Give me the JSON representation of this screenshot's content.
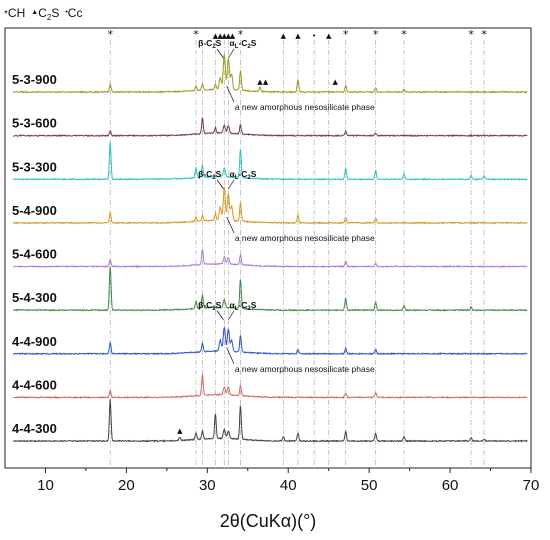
{
  "chart_data": {
    "type": "line",
    "title": "",
    "xlabel": "2θ(CuKα)(°)",
    "ylabel": "",
    "xlim": [
      5,
      70
    ],
    "x_ticks": [
      10,
      20,
      30,
      40,
      50,
      60,
      70
    ],
    "y_axis": "hidden",
    "grid": false,
    "legend": {
      "placement": "top-left",
      "entries": [
        {
          "marker": "*",
          "label": "CH"
        },
        {
          "marker": "▲",
          "label": "C",
          "sub": "2",
          "tail": "S"
        },
        {
          "marker": "•",
          "label": "Cc"
        }
      ]
    },
    "reference_lines_x": [
      18.0,
      28.6,
      29.4,
      31.0,
      32.1,
      32.6,
      34.1,
      39.4,
      41.2,
      43.2,
      45.0,
      47.1,
      50.8,
      54.3,
      62.6,
      64.2
    ],
    "reference_markers": [
      {
        "x": 18.0,
        "marker": "*"
      },
      {
        "x": 28.6,
        "marker": "*"
      },
      {
        "x": 31.0,
        "marker": "▲"
      },
      {
        "x": 31.6,
        "marker": "▲"
      },
      {
        "x": 32.1,
        "marker": "▲"
      },
      {
        "x": 32.6,
        "marker": "▲"
      },
      {
        "x": 33.1,
        "marker": "▲"
      },
      {
        "x": 34.1,
        "marker": "*"
      },
      {
        "x": 39.4,
        "marker": "▲"
      },
      {
        "x": 41.2,
        "marker": "▲"
      },
      {
        "x": 43.2,
        "marker": "•"
      },
      {
        "x": 45.0,
        "marker": "▲"
      },
      {
        "x": 47.1,
        "marker": "*"
      },
      {
        "x": 50.8,
        "marker": "*"
      },
      {
        "x": 54.3,
        "marker": "*"
      },
      {
        "x": 62.6,
        "marker": "*"
      },
      {
        "x": 64.2,
        "marker": "*"
      }
    ],
    "series": [
      {
        "name": "5-3-900",
        "color": "#9d9a1f",
        "peaks": [
          [
            18.0,
            0.35
          ],
          [
            28.6,
            0.2
          ],
          [
            29.4,
            0.3
          ],
          [
            31.0,
            0.25
          ],
          [
            31.6,
            0.55
          ],
          [
            32.1,
            1.6
          ],
          [
            32.6,
            1.4
          ],
          [
            33.0,
            0.7
          ],
          [
            34.1,
            0.9
          ],
          [
            36.5,
            0.2
          ],
          [
            41.2,
            0.55
          ],
          [
            47.1,
            0.3
          ],
          [
            50.8,
            0.2
          ],
          [
            54.3,
            0.15
          ]
        ]
      },
      {
        "name": "5-3-600",
        "color": "#7a3a44",
        "peaks": [
          [
            18.0,
            0.2
          ],
          [
            29.4,
            0.75
          ],
          [
            31.0,
            0.25
          ],
          [
            32.1,
            0.35
          ],
          [
            32.6,
            0.35
          ],
          [
            34.1,
            0.4
          ],
          [
            47.1,
            0.2
          ],
          [
            50.8,
            0.12
          ]
        ]
      },
      {
        "name": "5-3-300",
        "color": "#2fc4c0",
        "peaks": [
          [
            18.0,
            1.7
          ],
          [
            28.6,
            0.45
          ],
          [
            29.4,
            0.55
          ],
          [
            32.1,
            0.4
          ],
          [
            34.1,
            1.3
          ],
          [
            47.1,
            0.5
          ],
          [
            50.8,
            0.4
          ],
          [
            54.3,
            0.25
          ],
          [
            62.6,
            0.2
          ],
          [
            64.2,
            0.15
          ]
        ]
      },
      {
        "name": "5-4-900",
        "color": "#d59a1e",
        "peaks": [
          [
            18.0,
            0.45
          ],
          [
            28.6,
            0.2
          ],
          [
            29.4,
            0.25
          ],
          [
            31.0,
            0.3
          ],
          [
            31.6,
            0.6
          ],
          [
            32.1,
            1.5
          ],
          [
            32.6,
            1.2
          ],
          [
            33.0,
            0.65
          ],
          [
            34.1,
            0.85
          ],
          [
            41.2,
            0.35
          ],
          [
            47.1,
            0.25
          ],
          [
            50.8,
            0.2
          ]
        ]
      },
      {
        "name": "5-4-600",
        "color": "#b07ad0",
        "peaks": [
          [
            18.0,
            0.3
          ],
          [
            29.4,
            0.7
          ],
          [
            32.1,
            0.3
          ],
          [
            32.6,
            0.3
          ],
          [
            34.1,
            0.45
          ],
          [
            47.1,
            0.25
          ],
          [
            50.8,
            0.15
          ]
        ]
      },
      {
        "name": "5-4-300",
        "color": "#3e8a48",
        "peaks": [
          [
            18.0,
            2.0
          ],
          [
            28.6,
            0.35
          ],
          [
            29.4,
            0.6
          ],
          [
            32.1,
            0.35
          ],
          [
            34.1,
            1.35
          ],
          [
            47.1,
            0.55
          ],
          [
            50.8,
            0.35
          ],
          [
            54.3,
            0.2
          ],
          [
            62.6,
            0.15
          ]
        ]
      },
      {
        "name": "4-4-900",
        "color": "#2f52c4",
        "peaks": [
          [
            18.0,
            0.5
          ],
          [
            29.4,
            0.4
          ],
          [
            31.6,
            0.5
          ],
          [
            32.1,
            1.1
          ],
          [
            32.6,
            1.0
          ],
          [
            33.0,
            0.5
          ],
          [
            34.1,
            0.75
          ],
          [
            41.2,
            0.2
          ],
          [
            47.1,
            0.25
          ],
          [
            50.8,
            0.2
          ]
        ]
      },
      {
        "name": "4-4-600",
        "color": "#d06a5c",
        "peaks": [
          [
            18.0,
            0.3
          ],
          [
            29.4,
            0.95
          ],
          [
            32.1,
            0.35
          ],
          [
            32.6,
            0.35
          ],
          [
            34.1,
            0.45
          ],
          [
            47.1,
            0.2
          ],
          [
            50.8,
            0.2
          ]
        ]
      },
      {
        "name": "4-4-300",
        "color": "#444444",
        "peaks": [
          [
            18.0,
            1.9
          ],
          [
            26.6,
            0.15
          ],
          [
            28.6,
            0.3
          ],
          [
            29.4,
            0.4
          ],
          [
            31.0,
            1.15
          ],
          [
            32.1,
            0.4
          ],
          [
            32.6,
            0.35
          ],
          [
            34.1,
            1.55
          ],
          [
            39.4,
            0.2
          ],
          [
            41.2,
            0.35
          ],
          [
            47.1,
            0.45
          ],
          [
            50.8,
            0.35
          ],
          [
            54.3,
            0.2
          ],
          [
            62.6,
            0.15
          ],
          [
            64.2,
            0.1
          ]
        ]
      }
    ],
    "annotations": [
      {
        "series": "5-3-900",
        "text": "a new amorphous nesosilicate phase",
        "x": 32.4
      },
      {
        "series": "5-4-900",
        "text": "a new amorphous nesosilicate phase",
        "x": 32.4
      },
      {
        "series": "4-4-900",
        "text": "a new amorphous nesosilicate phase",
        "x": 32.4
      }
    ],
    "phase_labels": [
      {
        "series": "5-3-900",
        "beta": "β-C",
        "beta_sub": "2",
        "beta_tail": "S",
        "alpha": "α",
        "alpha_sub": "L",
        "alpha_tail": "-C",
        "alpha_sub2": "2",
        "alpha_tail2": "S"
      },
      {
        "series": "5-4-900",
        "beta": "β-C",
        "beta_sub": "2",
        "beta_tail": "S",
        "alpha": "α",
        "alpha_sub": "L",
        "alpha_tail": "-C",
        "alpha_sub2": "2",
        "alpha_tail2": "S"
      },
      {
        "series": "4-4-900",
        "beta": "β-C",
        "beta_sub": "2",
        "beta_tail": "S",
        "alpha": "α",
        "alpha_sub": "L",
        "alpha_tail": "-C",
        "alpha_sub2": "2",
        "alpha_tail2": "S"
      }
    ],
    "extra_markers": [
      {
        "series": "5-3-900",
        "x": 36.5,
        "marker": "▲"
      },
      {
        "series": "5-3-900",
        "x": 37.2,
        "marker": "▲"
      },
      {
        "series": "5-3-900",
        "x": 45.8,
        "marker": "▲"
      },
      {
        "series": "4-4-300",
        "x": 26.6,
        "marker": "▲"
      }
    ]
  }
}
